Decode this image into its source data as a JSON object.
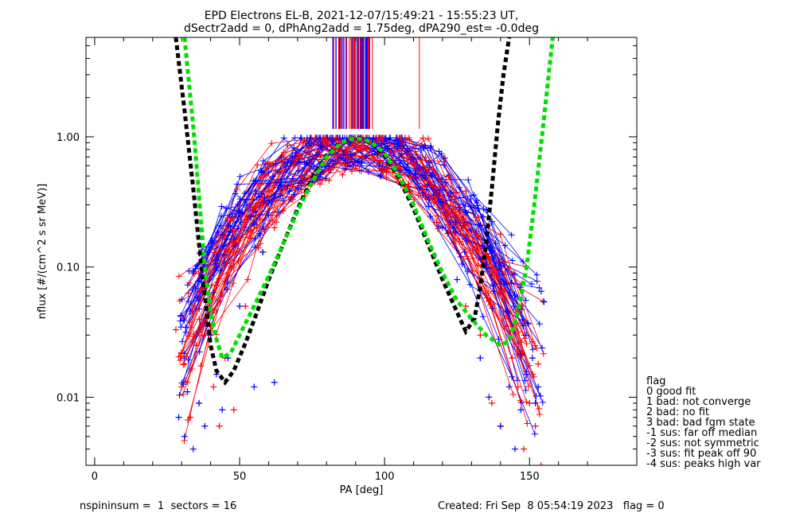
{
  "chart_data": {
    "type": "line",
    "title": [
      "EPD Electrons EL-B, 2021-12-07/15:49:21 - 15:55:23 UT,",
      "dSectr2add = 0, dPhAng2add = 1.75deg, dPA290_est=  -0.0deg"
    ],
    "xlabel": "PA [deg]",
    "ylabel": "nflux [#/(cm^2 s sr MeV)]",
    "xlim": [
      -3,
      187
    ],
    "ylim": [
      0.003,
      5.8
    ],
    "y_scale": "log",
    "xticks": [
      0,
      50,
      100,
      150
    ],
    "xtick_labels": [
      "0",
      "50",
      "100",
      "150"
    ],
    "yticks": [
      0.01,
      0.1,
      1.0
    ],
    "ytick_labels": [
      "0.01",
      "0.10",
      "1.00"
    ],
    "grid": false,
    "series": [
      {
        "color": "#000000",
        "style": "dashed",
        "x": [
          28,
          31,
          34,
          36,
          38,
          40,
          42,
          45,
          48,
          52,
          56,
          60,
          65,
          70,
          75,
          80,
          84,
          88,
          90,
          92,
          96,
          100,
          105,
          110,
          115,
          120,
          125,
          128,
          131,
          133,
          135,
          137,
          139,
          141,
          143
        ],
        "y": [
          5.8,
          1.6,
          0.4,
          0.15,
          0.06,
          0.025,
          0.016,
          0.013,
          0.016,
          0.026,
          0.045,
          0.08,
          0.15,
          0.28,
          0.48,
          0.72,
          0.87,
          0.96,
          0.98,
          0.97,
          0.88,
          0.72,
          0.48,
          0.28,
          0.15,
          0.08,
          0.045,
          0.032,
          0.04,
          0.07,
          0.15,
          0.4,
          1.2,
          3.0,
          5.8
        ]
      },
      {
        "color": "#00e000",
        "style": "dashed",
        "x": [
          31,
          34,
          36,
          38,
          40,
          42,
          44,
          47,
          50,
          55,
          60,
          65,
          70,
          75,
          80,
          85,
          88,
          90,
          92,
          95,
          100,
          105,
          110,
          115,
          120,
          125,
          130,
          135,
          140,
          143,
          146,
          149,
          152,
          155,
          158
        ],
        "y": [
          5.8,
          1.2,
          0.35,
          0.1,
          0.045,
          0.028,
          0.02,
          0.022,
          0.03,
          0.05,
          0.085,
          0.15,
          0.27,
          0.45,
          0.7,
          0.9,
          0.96,
          0.97,
          0.96,
          0.92,
          0.75,
          0.5,
          0.3,
          0.16,
          0.09,
          0.055,
          0.04,
          0.03,
          0.025,
          0.027,
          0.045,
          0.1,
          0.35,
          1.4,
          5.8
        ]
      }
    ],
    "scatter_series": [
      {
        "color": "#ff0000",
        "marker": "+",
        "x": [
          28,
          30,
          31,
          33,
          35,
          36,
          38,
          40,
          41,
          43,
          45,
          48,
          52,
          58,
          62,
          65,
          80,
          84,
          92,
          98,
          118,
          122,
          124,
          128,
          133,
          137,
          140,
          142,
          144,
          146,
          148,
          150,
          152,
          153,
          154
        ],
        "y": [
          0.033,
          0.012,
          0.018,
          0.007,
          0.025,
          0.009,
          0.03,
          0.035,
          0.012,
          0.006,
          0.02,
          0.008,
          0.05,
          0.13,
          0.2,
          0.27,
          0.95,
          0.9,
          0.95,
          0.97,
          0.22,
          0.26,
          0.18,
          0.05,
          0.03,
          0.009,
          0.006,
          0.035,
          0.02,
          0.012,
          0.004,
          0.009,
          0.006,
          0.018,
          0.003
        ]
      },
      {
        "color": "#0000ff",
        "marker": "+",
        "x": [
          29,
          31,
          32,
          34,
          36,
          38,
          40,
          42,
          44,
          46,
          50,
          55,
          58,
          60,
          62,
          78,
          82,
          88,
          96,
          97,
          120,
          125,
          130,
          133,
          136,
          140,
          143,
          145,
          147,
          149,
          151,
          152,
          153,
          154,
          155
        ],
        "y": [
          0.007,
          0.005,
          0.011,
          0.004,
          0.009,
          0.006,
          0.03,
          0.015,
          0.008,
          0.02,
          0.05,
          0.012,
          0.13,
          0.25,
          0.013,
          0.85,
          0.93,
          0.9,
          0.95,
          0.97,
          0.2,
          0.08,
          0.04,
          0.02,
          0.01,
          0.006,
          0.012,
          0.004,
          0.008,
          0.015,
          0.02,
          0.009,
          0.012,
          0.065,
          0.054
        ]
      }
    ],
    "legend": {
      "position": "right",
      "title": "flag",
      "entries": [
        "0 good fit",
        "1 bad: not converge",
        "2 bad: no fit",
        "3 bad: bad fgm state",
        "-1 sus: far off median",
        "-2 sus: not symmetric",
        "-3 sus: fit peak off 90",
        "-4 sus: peaks high var"
      ]
    }
  },
  "footer": {
    "left": "nspininsum =  1  sectors = 16",
    "right": "Created: Fri Sep  8 05:54:19 2023   flag = 0"
  },
  "colors": {
    "red": "#ff0000",
    "blue": "#0000ff",
    "black": "#000000",
    "green": "#00e000"
  }
}
